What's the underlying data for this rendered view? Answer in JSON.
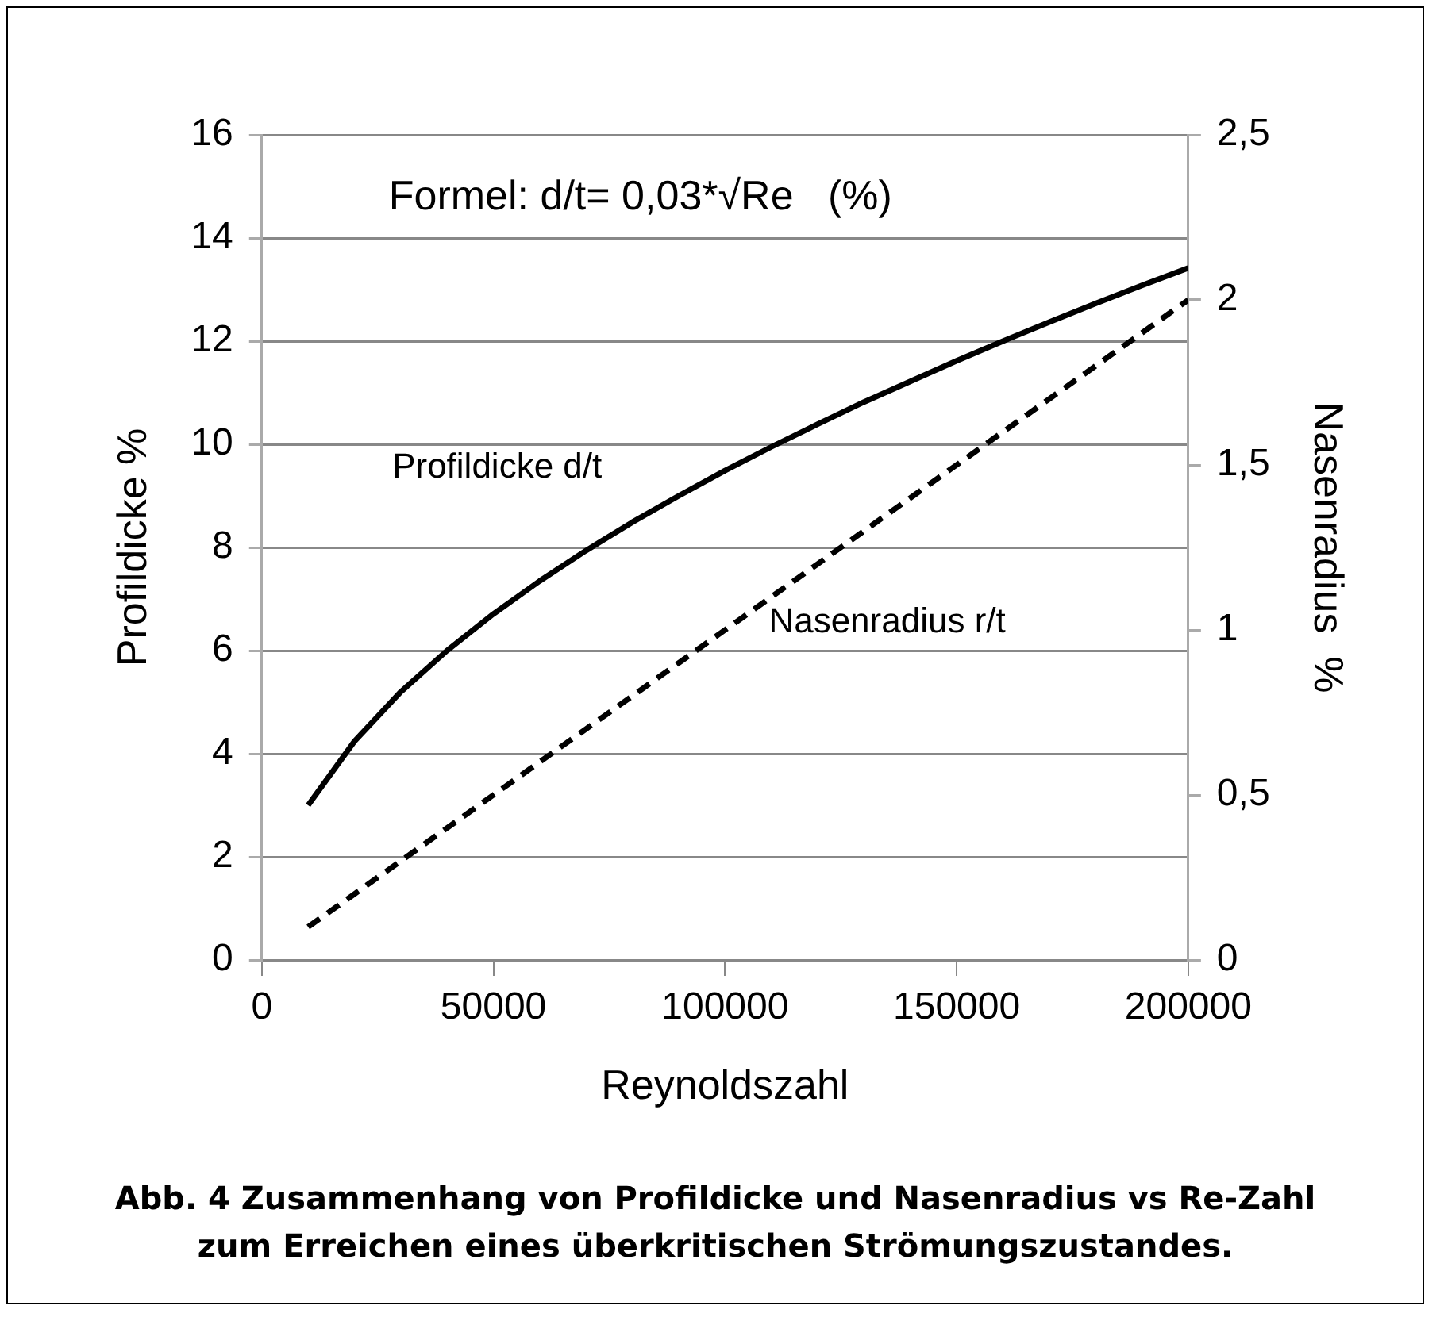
{
  "chart_data": {
    "type": "line",
    "x": [
      10000,
      20000,
      30000,
      40000,
      50000,
      60000,
      70000,
      80000,
      90000,
      100000,
      110000,
      120000,
      130000,
      140000,
      150000,
      160000,
      170000,
      180000,
      190000,
      200000
    ],
    "series": [
      {
        "name": "Profildicke d/t",
        "color": "#000000",
        "line_style": "solid",
        "values": [
          3.0,
          4.24,
          5.2,
          6.0,
          6.71,
          7.35,
          7.94,
          8.49,
          9.0,
          9.49,
          9.95,
          10.39,
          10.82,
          11.22,
          11.62,
          12.0,
          12.37,
          12.73,
          13.08,
          13.42
        ]
      },
      {
        "name": "Nasenradius r/t",
        "color": "#000000",
        "line_style": "dashed",
        "axis": "y2",
        "values": [
          0.1,
          0.2,
          0.3,
          0.4,
          0.5,
          0.6,
          0.7,
          0.8,
          0.9,
          1.0,
          1.1,
          1.2,
          1.3,
          1.4,
          1.5,
          1.6,
          1.7,
          1.8,
          1.9,
          2.0
        ]
      }
    ],
    "xlabel": "Reynoldszahl",
    "ylabel": "Profildicke %",
    "y2label": "Nasenradius  %",
    "xlim": [
      0,
      200000
    ],
    "xticks": [
      0,
      50000,
      100000,
      150000,
      200000
    ],
    "ylim": [
      0,
      16
    ],
    "yticks": [
      0,
      2,
      4,
      6,
      8,
      10,
      12,
      14,
      16
    ],
    "y2lim": [
      0,
      2.5
    ],
    "y2ticks": [
      0,
      {
        "value": 0.5,
        "label": "0,5"
      },
      1,
      {
        "value": 1.5,
        "label": "1,5"
      },
      2,
      {
        "value": 2.5,
        "label": "2,5"
      }
    ],
    "grid": "y",
    "legend": false,
    "marker": "none",
    "annotations": [
      "Formel: d/t= 0,03*√Re   (%)",
      "Abb. 4  Zusammenhang von Profildicke und Nasenradius vs Re-Zahl\nzum Erreichen eines überkritischen Strömungszustandes."
    ]
  }
}
